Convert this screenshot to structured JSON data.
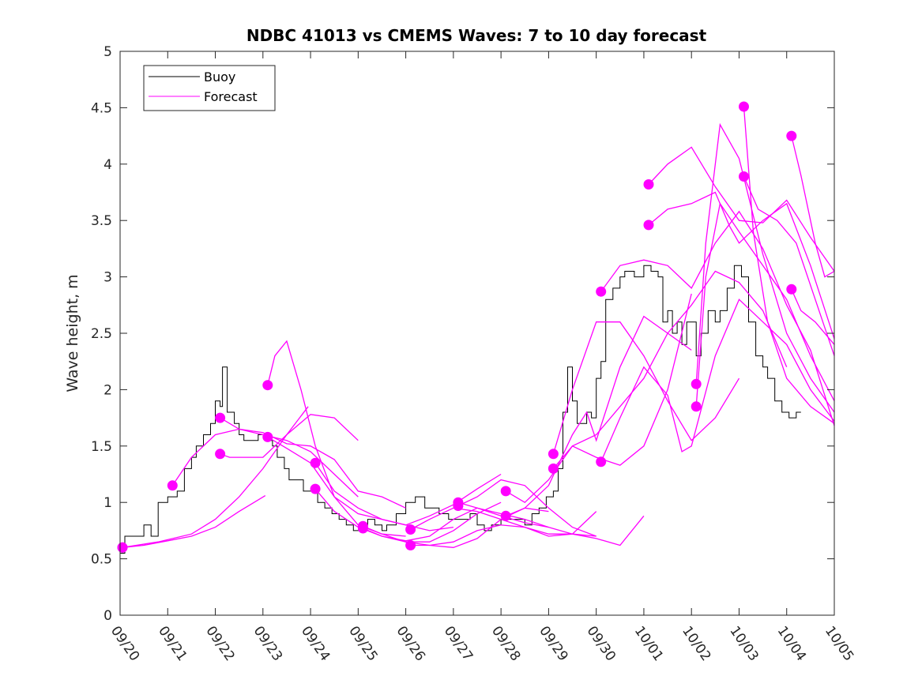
{
  "chart_data": {
    "type": "line",
    "title": "NDBC 41013 vs CMEMS Waves: 7 to 10 day forecast",
    "xlabel": "",
    "ylabel": "Wave height, m",
    "xlim": [
      0,
      15
    ],
    "ylim": [
      0,
      5
    ],
    "x_ticks": [
      "09/20",
      "09/21",
      "09/22",
      "09/23",
      "09/24",
      "09/25",
      "09/26",
      "09/27",
      "09/28",
      "09/29",
      "09/30",
      "10/01",
      "10/02",
      "10/03",
      "10/04",
      "10/05"
    ],
    "y_ticks": [
      "0",
      "0.5",
      "1",
      "1.5",
      "2",
      "2.5",
      "3",
      "3.5",
      "4",
      "4.5",
      "5"
    ],
    "legend": {
      "position": "top-left",
      "entries": [
        "Buoy",
        "Forecast"
      ]
    },
    "colors": {
      "buoy": "#000000",
      "forecast": "#ff00ff"
    },
    "buoy": {
      "name": "Buoy",
      "x": [
        0,
        0.1,
        0.4,
        0.5,
        0.65,
        0.8,
        1.0,
        1.2,
        1.35,
        1.5,
        1.6,
        1.75,
        1.9,
        2.0,
        2.1,
        2.15,
        2.25,
        2.4,
        2.5,
        2.6,
        2.75,
        2.9,
        3.0,
        3.1,
        3.2,
        3.3,
        3.45,
        3.55,
        3.7,
        3.85,
        4.0,
        4.15,
        4.3,
        4.45,
        4.6,
        4.75,
        4.9,
        5.0,
        5.1,
        5.2,
        5.35,
        5.5,
        5.6,
        5.8,
        6.0,
        6.2,
        6.4,
        6.55,
        6.7,
        6.9,
        7.05,
        7.2,
        7.35,
        7.5,
        7.65,
        7.8,
        8.0,
        8.2,
        8.35,
        8.5,
        8.65,
        8.8,
        8.95,
        9.1,
        9.2,
        9.3,
        9.4,
        9.5,
        9.6,
        9.7,
        9.8,
        9.9,
        10.0,
        10.1,
        10.2,
        10.35,
        10.5,
        10.6,
        10.8,
        11.0,
        11.15,
        11.3,
        11.4,
        11.5,
        11.6,
        11.7,
        11.8,
        11.9,
        12.0,
        12.1,
        12.2,
        12.35,
        12.5,
        12.6,
        12.75,
        12.9,
        13.05,
        13.2,
        13.35,
        13.5,
        13.6,
        13.75,
        13.9,
        14.05,
        14.2,
        14.3
      ],
      "values": [
        0.55,
        0.7,
        0.7,
        0.8,
        0.7,
        1.0,
        1.05,
        1.1,
        1.3,
        1.4,
        1.5,
        1.6,
        1.7,
        1.9,
        1.85,
        2.2,
        1.8,
        1.7,
        1.6,
        1.55,
        1.55,
        1.6,
        1.6,
        1.55,
        1.5,
        1.4,
        1.3,
        1.2,
        1.2,
        1.1,
        1.1,
        1.0,
        0.95,
        0.9,
        0.85,
        0.8,
        0.75,
        0.75,
        0.8,
        0.85,
        0.8,
        0.75,
        0.8,
        0.9,
        1.0,
        1.05,
        0.95,
        0.95,
        0.9,
        0.85,
        0.85,
        0.85,
        0.9,
        0.8,
        0.75,
        0.8,
        0.85,
        0.85,
        0.85,
        0.8,
        0.9,
        0.95,
        1.05,
        1.1,
        1.3,
        1.8,
        2.2,
        1.9,
        1.7,
        1.7,
        1.8,
        1.75,
        2.1,
        2.25,
        2.8,
        2.9,
        3.0,
        3.05,
        3.0,
        3.1,
        3.05,
        3.0,
        2.6,
        2.7,
        2.5,
        2.6,
        2.4,
        2.6,
        2.6,
        2.3,
        2.5,
        2.7,
        2.6,
        2.7,
        2.9,
        3.1,
        3.0,
        2.6,
        2.3,
        2.2,
        2.1,
        1.9,
        1.8,
        1.75,
        1.8,
        1.8
      ]
    },
    "forecast_series": [
      {
        "name": "Forecast",
        "x": [
          0.05,
          0.5,
          1.0,
          1.5,
          2.0,
          2.5,
          3.05
        ],
        "values": [
          0.6,
          0.62,
          0.66,
          0.7,
          0.78,
          0.92,
          1.06
        ]
      },
      {
        "name": "Forecast",
        "x": [
          0.05,
          0.8,
          1.5,
          2.0,
          2.5,
          3.0,
          3.5,
          3.95
        ],
        "values": [
          0.6,
          0.65,
          0.72,
          0.85,
          1.05,
          1.3,
          1.6,
          1.85
        ]
      },
      {
        "name": "Forecast",
        "x": [
          1.1,
          1.5,
          2.0,
          2.5,
          3.0,
          3.5,
          4.0,
          4.5,
          5.0
        ],
        "values": [
          1.15,
          1.4,
          1.6,
          1.65,
          1.6,
          1.55,
          1.45,
          1.25,
          1.05
        ]
      },
      {
        "name": "Forecast",
        "x": [
          2.1,
          2.5,
          3.0,
          3.5,
          4.0,
          4.5,
          5.0,
          5.5,
          6.0
        ],
        "values": [
          1.75,
          1.65,
          1.62,
          1.52,
          1.5,
          1.38,
          1.1,
          1.05,
          0.95
        ]
      },
      {
        "name": "Forecast",
        "x": [
          2.1,
          2.3,
          3.0,
          3.5,
          4.0,
          4.5,
          5.0
        ],
        "values": [
          1.43,
          1.4,
          1.4,
          1.6,
          1.78,
          1.75,
          1.55
        ]
      },
      {
        "name": "Forecast",
        "x": [
          3.1,
          3.25,
          3.5,
          3.8,
          4.1,
          4.5,
          5.0,
          5.5,
          6.0
        ],
        "values": [
          2.04,
          2.3,
          2.43,
          2.0,
          1.5,
          1.05,
          0.8,
          0.72,
          0.7
        ]
      },
      {
        "name": "Forecast",
        "x": [
          3.1,
          3.5,
          4.0,
          4.5,
          5.0,
          5.5,
          6.0,
          6.5,
          7.0
        ],
        "values": [
          1.58,
          1.48,
          1.35,
          1.05,
          0.9,
          0.85,
          0.8,
          0.75,
          0.78
        ]
      },
      {
        "name": "Forecast",
        "x": [
          4.1,
          4.5,
          5.0,
          5.5,
          6.0,
          6.5,
          7.0,
          7.5,
          8.0
        ],
        "values": [
          1.35,
          1.1,
          0.95,
          0.85,
          0.8,
          0.88,
          0.98,
          1.12,
          1.25
        ]
      },
      {
        "name": "Forecast",
        "x": [
          4.1,
          4.5,
          5.0,
          5.5,
          6.0,
          6.5,
          7.0,
          7.5,
          8.0
        ],
        "values": [
          1.12,
          0.92,
          0.78,
          0.7,
          0.65,
          0.65,
          0.75,
          0.9,
          1.0
        ]
      },
      {
        "name": "Forecast",
        "x": [
          5.1,
          5.5,
          6.0,
          6.5,
          7.0,
          7.5,
          8.0,
          8.5,
          9.0
        ],
        "values": [
          0.79,
          0.72,
          0.65,
          0.62,
          0.6,
          0.68,
          0.85,
          0.95,
          0.92
        ]
      },
      {
        "name": "Forecast",
        "x": [
          5.1,
          5.5,
          6.0,
          6.5,
          7.0,
          7.5,
          8.0,
          8.5,
          9.0
        ],
        "values": [
          0.77,
          0.7,
          0.66,
          0.7,
          0.85,
          0.95,
          0.9,
          0.85,
          0.78
        ]
      },
      {
        "name": "Forecast",
        "x": [
          6.1,
          6.5,
          7.0,
          7.5,
          8.0,
          8.5,
          9.0,
          9.5,
          10.0
        ],
        "values": [
          0.76,
          0.85,
          0.95,
          0.92,
          0.85,
          0.78,
          0.72,
          0.72,
          0.7
        ]
      },
      {
        "name": "Forecast",
        "x": [
          6.1,
          6.5,
          7.0,
          7.5,
          8.0,
          8.5,
          9.0,
          9.5,
          10.0
        ],
        "values": [
          0.62,
          0.62,
          0.65,
          0.75,
          0.8,
          0.78,
          0.7,
          0.72,
          0.92
        ]
      },
      {
        "name": "Forecast",
        "x": [
          7.1,
          7.5,
          8.0,
          8.5,
          9.0,
          9.5,
          10.0,
          10.5,
          11.0
        ],
        "values": [
          1.0,
          0.95,
          0.88,
          0.82,
          0.78,
          0.72,
          0.68,
          0.62,
          0.88
        ]
      },
      {
        "name": "Forecast",
        "x": [
          7.1,
          7.5,
          8.0,
          8.5,
          9.0,
          9.5,
          10.0
        ],
        "values": [
          0.97,
          1.05,
          1.2,
          1.15,
          0.95,
          0.78,
          0.7
        ]
      },
      {
        "name": "Forecast",
        "x": [
          8.1,
          8.5,
          9.0,
          9.5,
          10.0,
          10.5,
          11.0,
          11.5,
          12.0
        ],
        "values": [
          1.1,
          1.0,
          1.2,
          1.5,
          1.4,
          1.33,
          1.5,
          2.0,
          2.85
        ]
      },
      {
        "name": "Forecast",
        "x": [
          8.1,
          8.5,
          9.0,
          9.5,
          9.8,
          10.0,
          10.5,
          11.0,
          11.5,
          12.0
        ],
        "values": [
          0.88,
          0.95,
          1.15,
          1.6,
          1.8,
          1.55,
          2.2,
          2.65,
          2.5,
          2.35
        ]
      },
      {
        "name": "Forecast",
        "x": [
          9.1,
          9.5,
          10.0,
          10.5,
          11.0,
          11.5,
          12.0,
          12.5,
          13.0
        ],
        "values": [
          1.43,
          2.0,
          2.6,
          2.6,
          2.3,
          1.9,
          1.55,
          1.75,
          2.1
        ]
      },
      {
        "name": "Forecast",
        "x": [
          9.1,
          9.5,
          10.0,
          10.5,
          11.0,
          11.5,
          12.0,
          12.5,
          13.0,
          13.5,
          14.0
        ],
        "values": [
          1.3,
          1.5,
          1.6,
          1.85,
          2.1,
          2.5,
          2.75,
          3.05,
          2.95,
          2.7,
          2.2
        ]
      },
      {
        "name": "Forecast",
        "x": [
          10.1,
          10.5,
          11.0,
          11.5,
          12.0,
          12.5,
          13.0,
          13.5,
          14.0,
          14.5,
          15.0
        ],
        "values": [
          2.87,
          3.1,
          3.15,
          3.1,
          2.9,
          3.3,
          3.58,
          3.25,
          2.75,
          2.35,
          1.68
        ]
      },
      {
        "name": "Forecast",
        "x": [
          10.1,
          10.5,
          11.0,
          11.5,
          11.8,
          12.0,
          12.5,
          13.0,
          13.5,
          14.0,
          14.5,
          15.0
        ],
        "values": [
          1.36,
          1.75,
          2.2,
          1.95,
          1.45,
          1.5,
          2.3,
          2.8,
          2.6,
          2.4,
          2.0,
          1.72
        ]
      },
      {
        "name": "Forecast",
        "x": [
          11.1,
          11.5,
          12.0,
          12.5,
          13.0,
          13.5,
          14.0,
          14.5,
          15.0
        ],
        "values": [
          3.82,
          4.0,
          4.15,
          3.8,
          3.5,
          3.48,
          3.68,
          3.35,
          3.05
        ]
      },
      {
        "name": "Forecast",
        "x": [
          11.1,
          11.5,
          12.0,
          12.5,
          12.8,
          13.0,
          13.5,
          14.0,
          14.5,
          15.0
        ],
        "values": [
          3.46,
          3.6,
          3.65,
          3.75,
          3.45,
          3.3,
          3.5,
          3.65,
          3.1,
          2.45
        ]
      },
      {
        "name": "Forecast",
        "x": [
          12.1,
          12.3,
          12.6,
          13.0,
          13.5,
          14.0,
          14.5,
          15.0
        ],
        "values": [
          2.05,
          3.3,
          4.35,
          4.05,
          3.2,
          2.5,
          2.1,
          1.8
        ]
      },
      {
        "name": "Forecast",
        "x": [
          12.1,
          12.3,
          12.6,
          13.0,
          13.5,
          14.0,
          14.5,
          15.0
        ],
        "values": [
          1.85,
          3.0,
          3.65,
          3.4,
          3.1,
          2.8,
          2.3,
          1.9
        ]
      },
      {
        "name": "Forecast",
        "x": [
          13.1,
          13.3,
          13.6,
          14.0,
          14.5,
          15.0
        ],
        "values": [
          4.51,
          3.4,
          2.6,
          2.1,
          1.85,
          1.7
        ]
      },
      {
        "name": "Forecast",
        "x": [
          13.1,
          13.4,
          13.8,
          14.2,
          14.6,
          15.0
        ],
        "values": [
          3.89,
          3.6,
          3.5,
          3.3,
          2.8,
          2.3
        ]
      },
      {
        "name": "Forecast",
        "x": [
          14.1,
          14.3,
          14.6,
          14.8,
          15.0
        ],
        "values": [
          4.25,
          3.9,
          3.3,
          3.0,
          3.05
        ]
      },
      {
        "name": "Forecast",
        "x": [
          14.1,
          14.3,
          14.6,
          15.0
        ],
        "values": [
          2.89,
          2.7,
          2.6,
          2.4
        ]
      }
    ]
  }
}
